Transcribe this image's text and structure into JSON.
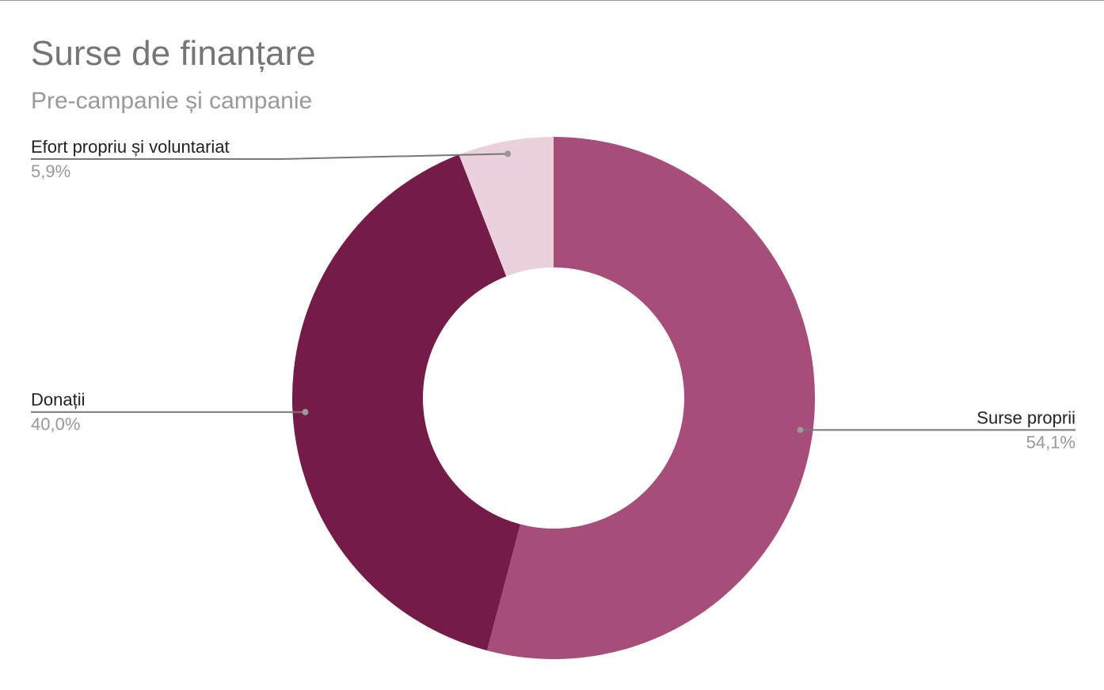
{
  "chart_data": {
    "type": "donut",
    "title": "Surse de finanțare",
    "subtitle": "Pre-campanie și campanie",
    "categories": [
      "Surse proprii",
      "Donații",
      "Efort propriu și voluntariat"
    ],
    "values": [
      54.1,
      40.0,
      5.9
    ],
    "value_labels": [
      "54,1%",
      "40,0%",
      "5,9%"
    ],
    "colors": [
      "#a64d79",
      "#741b47",
      "#ead1dc"
    ]
  }
}
